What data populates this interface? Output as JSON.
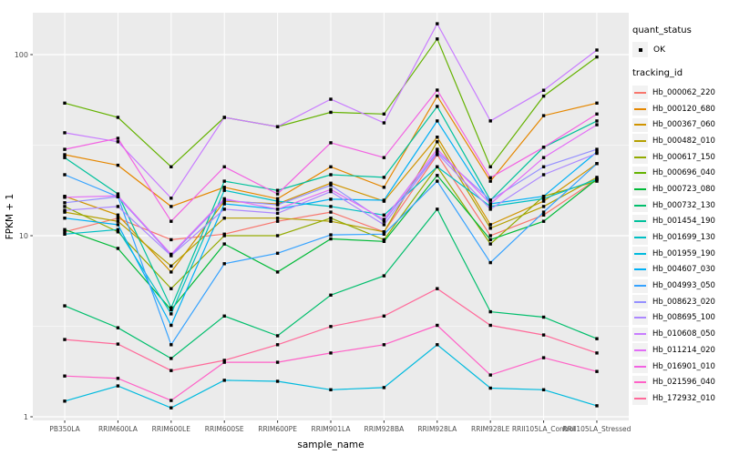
{
  "chart_data": {
    "type": "line",
    "title": "",
    "xlabel": "sample_name",
    "ylabel": "FPKM + 1",
    "y_scale": "log10",
    "y_breaks": [
      1,
      10,
      100
    ],
    "y_break_labels": [
      "1",
      "10",
      "100"
    ],
    "y_minor_breaks": [
      3.1623,
      31.623
    ],
    "ylim": [
      1,
      170
    ],
    "grid": true,
    "panel_bg": "#EBEBEB",
    "grid_color": "#FFFFFF",
    "point_color": "#000000",
    "tick_label_color": "#4D4D4D",
    "tick_mark_color": "#333333",
    "legend_position": "right",
    "categories": [
      "PB350LA",
      "RRIM600LA",
      "RRIM600LE",
      "RRIM600SE",
      "RRIM600PE",
      "RRIM901LA",
      "RRIM928BA",
      "RRIM928LA",
      "RRIM928LE",
      "RRII105LA_Control",
      "RRII105LA_Stressed"
    ],
    "series": [
      {
        "name": "Hb_000062_220",
        "color": "#F8766D",
        "values": [
          10.5,
          12.5,
          9.5,
          10.2,
          12.0,
          13.5,
          10.5,
          28,
          10.0,
          13.0,
          20.5
        ]
      },
      {
        "name": "Hb_000120_680",
        "color": "#E58700",
        "values": [
          28,
          24.5,
          14.5,
          18.5,
          16.0,
          24,
          18.5,
          59,
          20,
          46,
          54
        ]
      },
      {
        "name": "Hb_000367_060",
        "color": "#D09400",
        "values": [
          16.5,
          13.0,
          6.3,
          15.5,
          15.0,
          19.5,
          15.5,
          35,
          11.5,
          15.5,
          25
        ]
      },
      {
        "name": "Hb_000482_010",
        "color": "#B5A000",
        "values": [
          13.5,
          12.0,
          6.8,
          12.5,
          12.5,
          12.0,
          10.5,
          33,
          11.0,
          14.5,
          21
        ]
      },
      {
        "name": "Hb_000617_150",
        "color": "#93AA00",
        "values": [
          14.5,
          10.5,
          5.1,
          10.0,
          10.0,
          12.5,
          9.5,
          24,
          9.0,
          16.5,
          20
        ]
      },
      {
        "name": "Hb_000696_040",
        "color": "#64B200",
        "values": [
          54,
          45,
          24,
          45,
          40,
          48,
          47,
          122,
          24,
          59,
          97
        ]
      },
      {
        "name": "Hb_000723_080",
        "color": "#00BA38",
        "values": [
          10.8,
          8.5,
          3.9,
          9.0,
          6.3,
          9.6,
          9.3,
          21.5,
          9.5,
          12.0,
          20.5
        ]
      },
      {
        "name": "Hb_000732_130",
        "color": "#00BE6C",
        "values": [
          4.1,
          3.1,
          2.1,
          3.6,
          2.8,
          4.7,
          6.0,
          14,
          3.8,
          3.55,
          2.7
        ]
      },
      {
        "name": "Hb_001454_190",
        "color": "#00C19C",
        "values": [
          27,
          17,
          4.0,
          20,
          17.8,
          21.7,
          21,
          51.7,
          15.7,
          30.8,
          43
        ]
      },
      {
        "name": "Hb_001699_130",
        "color": "#00BFC4",
        "values": [
          10.2,
          10.8,
          3.7,
          17.8,
          15.5,
          14.5,
          13,
          24,
          14.5,
          16,
          20.5
        ]
      },
      {
        "name": "Hb_001959_190",
        "color": "#00BADE",
        "values": [
          1.22,
          1.48,
          1.12,
          1.59,
          1.57,
          1.41,
          1.45,
          2.5,
          1.44,
          1.41,
          1.15
        ]
      },
      {
        "name": "Hb_004607_030",
        "color": "#00B0F6",
        "values": [
          12.5,
          11.5,
          3.2,
          15.0,
          14.0,
          15.9,
          15.7,
          43,
          15.0,
          16.5,
          29
        ]
      },
      {
        "name": "Hb_004993_050",
        "color": "#35A2FF",
        "values": [
          21.7,
          16.4,
          2.5,
          7.0,
          8.0,
          10.1,
          10.2,
          20,
          7.1,
          13.5,
          25
        ]
      },
      {
        "name": "Hb_008623_020",
        "color": "#9590FF",
        "values": [
          15.2,
          16.4,
          7.8,
          15.7,
          14.8,
          19,
          12.0,
          29,
          15.7,
          24,
          30
        ]
      },
      {
        "name": "Hb_008695_100",
        "color": "#AC88FF",
        "values": [
          13.8,
          14.5,
          7.75,
          14.0,
          13.3,
          17.5,
          11.5,
          28.5,
          14.0,
          21.7,
          28.5
        ]
      },
      {
        "name": "Hb_010608_050",
        "color": "#C87CFF",
        "values": [
          37,
          33,
          16.1,
          45,
          40,
          56.7,
          42,
          148,
          43,
          63.5,
          106
        ]
      },
      {
        "name": "Hb_011214_020",
        "color": "#E26EF7",
        "values": [
          16.3,
          16.6,
          7.9,
          16.0,
          14.0,
          18,
          12.3,
          30,
          15.0,
          27,
          41
        ]
      },
      {
        "name": "Hb_016901_010",
        "color": "#F263E2",
        "values": [
          30,
          34.5,
          12.0,
          24,
          17,
          32.6,
          27,
          63.7,
          20.9,
          30.8,
          47
        ]
      },
      {
        "name": "Hb_021596_040",
        "color": "#FF61C7",
        "values": [
          1.68,
          1.63,
          1.23,
          2.0,
          2.0,
          2.25,
          2.5,
          3.2,
          1.7,
          2.12,
          1.78
        ]
      },
      {
        "name": "Hb_172932_010",
        "color": "#FF6A9A",
        "values": [
          2.67,
          2.52,
          1.8,
          2.05,
          2.5,
          3.15,
          3.6,
          5.1,
          3.2,
          2.83,
          2.25
        ]
      }
    ]
  },
  "legend": {
    "quant_status_title": "quant_status",
    "quant_status_items": [
      {
        "label": "OK",
        "symbol": "black-point"
      }
    ],
    "tracking_id_title": "tracking_id"
  }
}
